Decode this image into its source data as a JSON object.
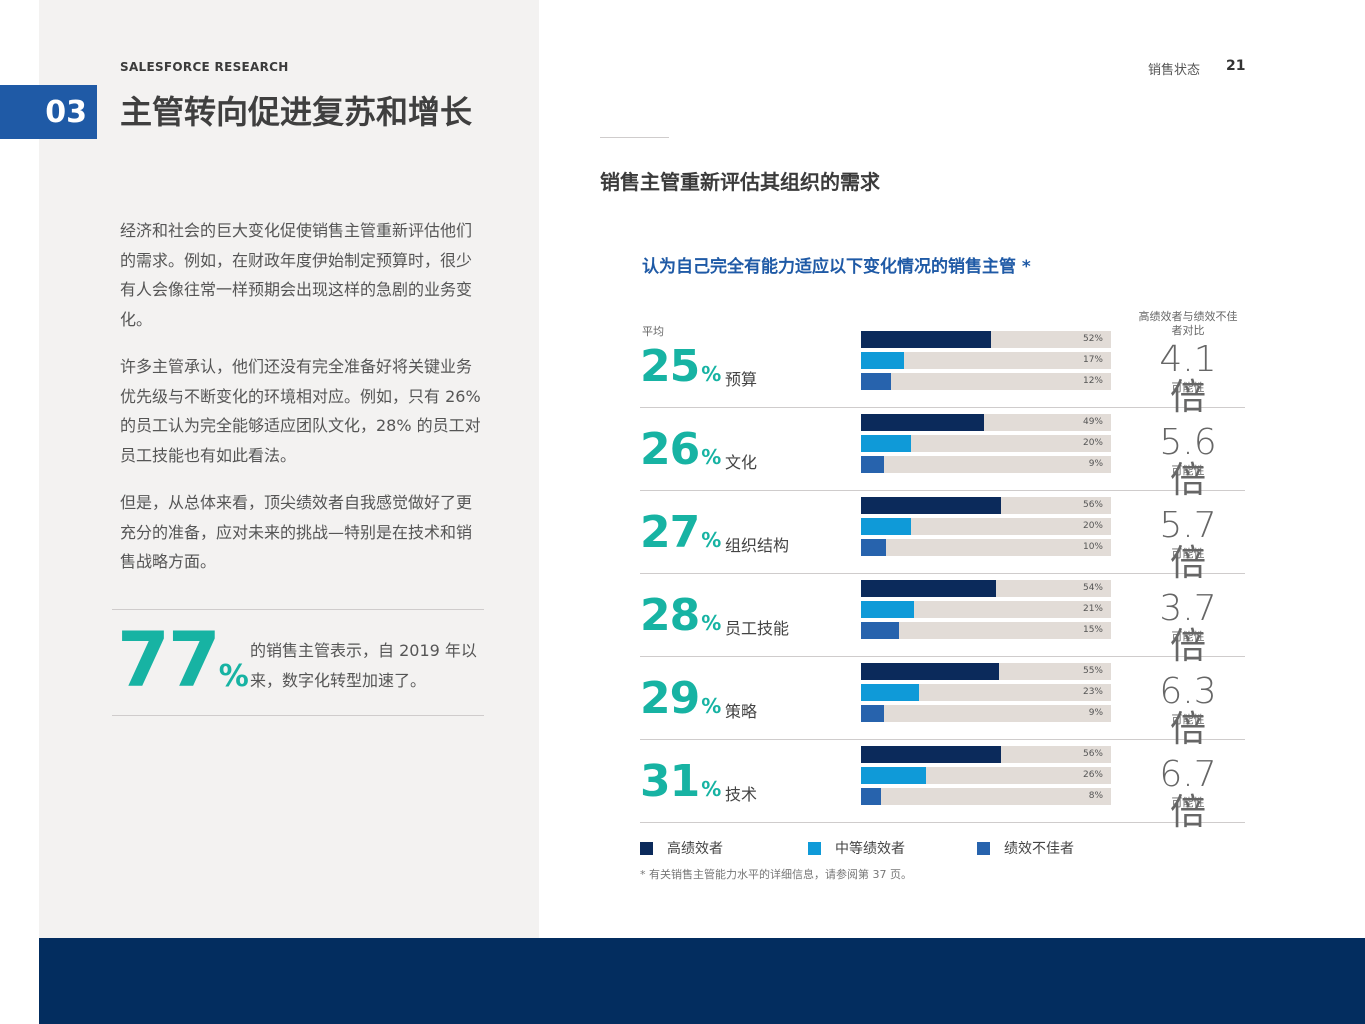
{
  "section": {
    "number": "03",
    "brand": "SALESFORCE RESEARCH",
    "title": "主管转向促进复苏和增长"
  },
  "header": {
    "page_label": "销售状态",
    "page_number": "21"
  },
  "left": {
    "paragraphs": [
      "经济和社会的巨大变化促使销售主管重新评估他们的需求。例如，在财政年度伊始制定预算时，很少有人会像往常一样预期会出现这样的急剧的业务变化。",
      "许多主管承认，他们还没有完全准备好将关键业务优先级与不断变化的环境相对应。例如，只有 26% 的员工认为完全能够适应团队文化，28% 的员工对员工技能也有如此看法。",
      "但是，从总体来看，顶尖绩效者自我感觉做好了更充分的准备，应对未来的挑战—特别是在技术和销售战略方面。"
    ],
    "stat": {
      "value": "77",
      "symbol": "%",
      "text": "的销售主管表示，自 2019 年以来，数字化转型加速了。"
    }
  },
  "chart_heading": "销售主管重新评估其组织的需求",
  "chart_data": {
    "type": "bar",
    "title": "认为自己完全有能力适应以下变化情况的销售主管 *",
    "avg_label": "平均",
    "ratio_header": "高绩效者与绩效不佳者对比",
    "categories": [
      "预算",
      "文化",
      "组织结构",
      "员工技能",
      "策略",
      "技术"
    ],
    "average": [
      25,
      26,
      27,
      28,
      29,
      31
    ],
    "average_symbol": "%",
    "series": [
      {
        "name": "高绩效者",
        "color": "#0b2a5b",
        "values": [
          52,
          49,
          56,
          54,
          55,
          56
        ]
      },
      {
        "name": "中等绩效者",
        "color": "#0f9ad8",
        "values": [
          17,
          20,
          20,
          21,
          23,
          26
        ]
      },
      {
        "name": "绩效不佳者",
        "color": "#2763ad",
        "values": [
          12,
          9,
          10,
          15,
          9,
          8
        ]
      }
    ],
    "ratios": [
      "4.1 倍",
      "5.6 倍",
      "5.7 倍",
      "3.7 倍",
      "6.3 倍",
      "6.7 倍"
    ],
    "ratio_sublabel": "可能性",
    "ylim": [
      0,
      100
    ],
    "track_color": "#e2dcd7",
    "footnote": "* 有关销售主管能力水平的详细信息，请参阅第 37 页。"
  },
  "colors": {
    "accent_teal": "#17b3a3",
    "brand_blue": "#1f5aa6",
    "footer_navy": "#032d5f"
  }
}
